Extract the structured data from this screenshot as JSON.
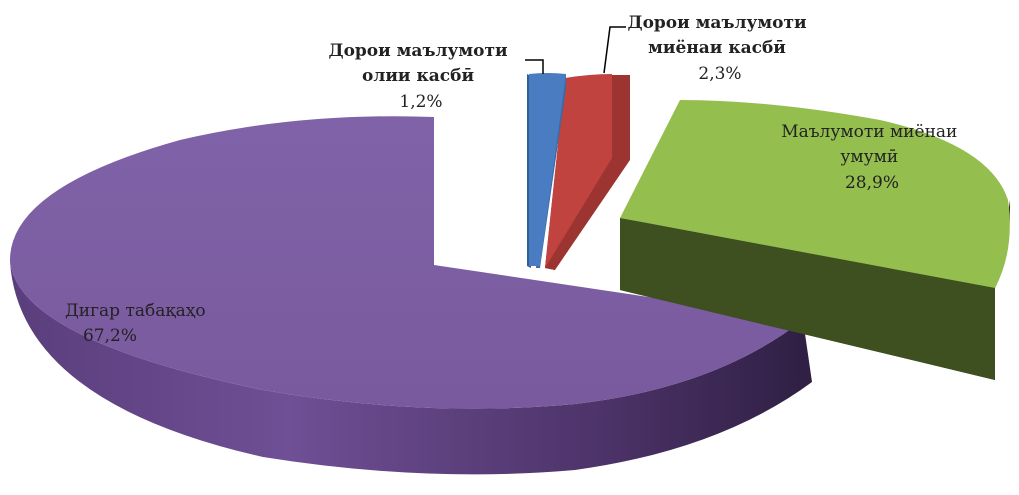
{
  "chart_data": {
    "type": "pie",
    "variant": "3d-exploded",
    "title": "",
    "slices": [
      {
        "id": "higher-vocational",
        "label_lines": [
          "Дорои маълумоти",
          "олии касбӣ"
        ],
        "value": 1.2,
        "value_label": "1,2%",
        "color": "#4a7cc1"
      },
      {
        "id": "secondary-vocational",
        "label_lines": [
          "Дорои маълумоти",
          "миёнаи касбӣ"
        ],
        "value": 2.3,
        "value_label": "2,3%",
        "color": "#c0433f"
      },
      {
        "id": "general-secondary",
        "label_lines": [
          "Маълумоти миёнаи",
          "умумӣ"
        ],
        "value": 28.9,
        "value_label": "28,9%",
        "color": "#94be4e"
      },
      {
        "id": "other-strata",
        "label_lines": [
          "Дигар табақаҳо"
        ],
        "value": 67.2,
        "value_label": "67,2%",
        "color": "#7d5da3"
      }
    ]
  }
}
